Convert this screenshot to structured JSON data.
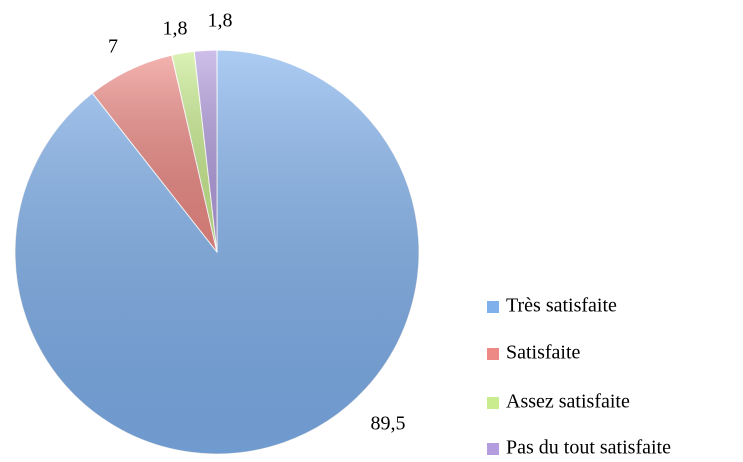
{
  "chart_data": {
    "type": "pie",
    "categories": [
      "Très satisfaite",
      "Satisfaite",
      "Assez satisfaite",
      "Pas du tout satisfaite"
    ],
    "values": [
      89.5,
      7,
      1.8,
      1.8
    ],
    "value_labels": [
      "89,5",
      "7",
      "1,8",
      "1,8"
    ],
    "colors": [
      "#7fb0ec",
      "#ee8a85",
      "#c8ec8e",
      "#b39ddf"
    ],
    "legend": "right"
  }
}
